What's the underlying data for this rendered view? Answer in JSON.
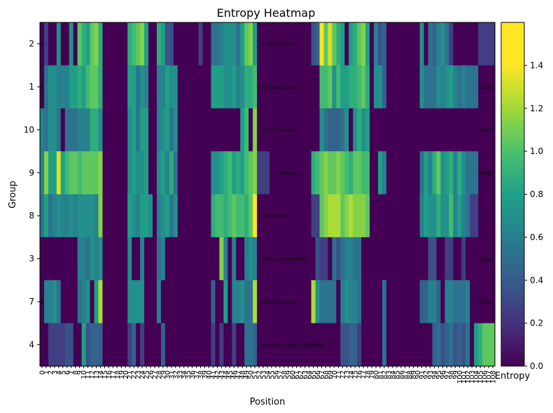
{
  "chart_data": {
    "type": "heatmap",
    "title": "Entropy Heatmap",
    "xlabel": "Position",
    "ylabel": "Group",
    "colorbar_label": "Entropy",
    "colormap": "viridis",
    "vmin": 0.0,
    "vmax": 1.6,
    "colorbar_ticks": [
      "0.0",
      "0.2",
      "0.4",
      "0.6",
      "0.8",
      "1.0",
      "1.2",
      "1.4"
    ],
    "groups": [
      "2",
      "1",
      "10",
      "9",
      "8",
      "3",
      "7",
      "4"
    ],
    "positions": [
      "0",
      "1",
      "2",
      "3",
      "4",
      "5",
      "6",
      "7",
      "8",
      "9",
      "10",
      "11",
      "12",
      "13",
      "14",
      "15",
      "16",
      "17",
      "18",
      "19",
      "20",
      "21",
      "22",
      "23",
      "24",
      "25",
      "26",
      "27",
      "28",
      "29",
      "30",
      "31",
      "32",
      "33",
      "34",
      "35",
      "36",
      "37",
      "38",
      "39",
      "40",
      "41",
      "42",
      "43",
      "44",
      "45",
      "46",
      "47",
      "48",
      "49",
      "50",
      "51",
      "52",
      "53",
      "54",
      "55",
      "56",
      "57",
      "58",
      "59",
      "60",
      "61",
      "62",
      "63",
      "64",
      "65",
      "66",
      "67",
      "68",
      "69",
      "70",
      "71",
      "72",
      "73",
      "74",
      "75",
      "76",
      "77",
      "78",
      "79",
      "80",
      "81",
      "82",
      "83",
      "84",
      "85",
      "86",
      "87",
      "88",
      "89",
      "90",
      "91",
      "92",
      "93",
      "94",
      "95",
      "96",
      "97",
      "98",
      "99",
      "100",
      "101",
      "102",
      "103",
      "104",
      "105",
      "106",
      "107",
      "108"
    ],
    "values": [
      [
        0.0,
        0.3,
        0.0,
        0.0,
        0.8,
        0.0,
        0.0,
        0.8,
        0.0,
        1.2,
        1.0,
        0.9,
        1.2,
        1.3,
        1.0,
        0.0,
        0.0,
        0.0,
        0.0,
        0.0,
        0.0,
        1.0,
        1.1,
        1.2,
        1.3,
        0.9,
        0.0,
        0.0,
        1.0,
        0.9,
        0.4,
        0.4,
        0.0,
        0.0,
        0.0,
        0.0,
        0.0,
        0.0,
        0.3,
        0.0,
        0.0,
        0.6,
        0.6,
        0.7,
        0.8,
        0.8,
        0.8,
        0.6,
        0.9,
        1.2,
        1.3,
        0.9,
        0.0,
        0.0,
        0.0,
        0.0,
        0.0,
        0.0,
        0.0,
        0.0,
        0.0,
        0.0,
        0.0,
        0.0,
        0.0,
        0.4,
        0.5,
        1.6,
        1.2,
        1.5,
        1.2,
        1.0,
        0.9,
        0.0,
        0.9,
        1.0,
        1.2,
        1.3,
        0.9,
        0.0,
        0.7,
        0.4,
        0.5,
        0.0,
        0.0,
        0.0,
        0.0,
        0.0,
        0.0,
        0.0,
        0.0,
        0.8,
        0.0,
        0.6,
        0.5,
        0.7,
        0.8,
        0.6,
        0.3,
        0.0,
        0.0,
        0.0,
        0.0,
        0.0,
        0.0,
        0.3,
        0.3,
        0.3,
        0.3
      ],
      [
        0.0,
        0.6,
        0.8,
        0.8,
        0.7,
        0.7,
        0.7,
        0.9,
        0.9,
        1.0,
        0.9,
        1.1,
        1.2,
        1.2,
        1.0,
        0.0,
        0.0,
        0.0,
        0.0,
        0.0,
        0.0,
        0.9,
        0.9,
        0.6,
        0.8,
        0.7,
        0.0,
        0.0,
        0.7,
        0.7,
        0.9,
        0.8,
        0.8,
        0.0,
        0.0,
        0.0,
        0.0,
        0.0,
        0.0,
        0.0,
        0.0,
        0.9,
        0.9,
        0.9,
        0.8,
        0.8,
        0.9,
        0.7,
        0.8,
        1.0,
        1.0,
        1.1,
        0.0,
        0.0,
        0.0,
        0.0,
        0.0,
        0.0,
        0.0,
        0.0,
        0.0,
        0.0,
        0.0,
        0.0,
        0.0,
        0.0,
        0.0,
        1.1,
        1.1,
        1.2,
        0.8,
        1.1,
        0.9,
        0.9,
        1.0,
        1.0,
        1.1,
        1.2,
        1.0,
        0.0,
        0.8,
        0.8,
        0.5,
        0.0,
        0.0,
        0.0,
        0.0,
        0.0,
        0.0,
        0.0,
        0.0,
        0.8,
        0.6,
        0.6,
        0.6,
        0.8,
        0.7,
        0.8,
        0.9,
        0.7,
        0.6,
        0.7,
        0.6,
        0.6,
        0.6,
        0.0,
        0.0,
        0.0,
        0.0
      ],
      [
        0.7,
        0.6,
        0.8,
        0.8,
        0.6,
        0.0,
        0.6,
        0.6,
        0.6,
        0.7,
        0.7,
        0.7,
        1.0,
        1.0,
        0.8,
        0.0,
        0.0,
        0.0,
        0.0,
        0.0,
        0.0,
        0.8,
        0.9,
        0.6,
        0.9,
        0.9,
        0.0,
        0.0,
        0.7,
        0.8,
        0.9,
        0.6,
        0.8,
        0.0,
        0.0,
        0.0,
        0.0,
        0.0,
        0.0,
        0.0,
        0.0,
        0.0,
        0.0,
        0.0,
        0.0,
        0.0,
        0.0,
        0.0,
        0.9,
        1.1,
        0.0,
        1.3,
        0.0,
        0.0,
        0.0,
        0.0,
        0.0,
        0.0,
        0.0,
        0.0,
        0.0,
        0.0,
        0.0,
        0.0,
        0.0,
        0.0,
        0.0,
        0.8,
        0.6,
        0.5,
        0.5,
        0.5,
        0.6,
        0.8,
        0.0,
        0.8,
        1.0,
        0.8,
        0.9,
        0.0,
        0.0,
        0.0,
        0.0,
        0.0,
        0.0,
        0.0,
        0.0,
        0.0,
        0.0,
        0.0,
        0.0,
        0.0,
        0.0,
        0.0,
        0.0,
        0.0,
        0.0,
        0.0,
        0.0,
        0.0,
        0.0,
        0.0,
        0.0,
        0.0,
        0.0,
        0.0,
        0.0,
        0.0,
        0.0
      ],
      [
        0.7,
        1.3,
        0.9,
        0.9,
        1.5,
        0.9,
        1.1,
        1.2,
        1.2,
        1.1,
        1.2,
        1.2,
        1.2,
        1.2,
        1.3,
        0.0,
        0.0,
        0.0,
        0.0,
        0.0,
        0.0,
        0.8,
        0.9,
        0.8,
        0.8,
        0.9,
        0.0,
        0.0,
        0.8,
        0.9,
        0.7,
        1.0,
        0.6,
        0.0,
        0.0,
        0.0,
        0.0,
        0.0,
        0.0,
        0.0,
        0.0,
        0.8,
        0.8,
        0.9,
        1.0,
        1.1,
        0.9,
        1.0,
        0.9,
        1.1,
        1.2,
        1.3,
        0.3,
        0.3,
        0.3,
        0.0,
        0.0,
        0.0,
        0.0,
        0.0,
        0.0,
        0.0,
        0.0,
        0.0,
        0.0,
        1.0,
        1.1,
        1.2,
        1.3,
        1.2,
        1.2,
        1.3,
        1.2,
        1.1,
        1.0,
        1.2,
        1.2,
        1.1,
        1.1,
        0.0,
        0.0,
        0.9,
        0.7,
        0.0,
        0.0,
        0.0,
        0.0,
        0.0,
        0.0,
        0.0,
        0.0,
        0.6,
        0.9,
        0.7,
        1.0,
        1.2,
        0.8,
        0.9,
        1.0,
        0.7,
        1.0,
        0.8,
        0.6,
        0.6,
        0.6,
        0.0,
        0.0,
        0.0,
        0.0
      ],
      [
        0.6,
        0.9,
        0.6,
        0.7,
        0.8,
        0.7,
        0.7,
        0.8,
        0.7,
        0.8,
        0.8,
        0.8,
        0.8,
        0.7,
        1.3,
        0.0,
        0.0,
        0.0,
        0.0,
        0.0,
        0.0,
        0.9,
        0.8,
        0.7,
        0.9,
        0.9,
        0.8,
        0.0,
        0.7,
        0.8,
        0.9,
        0.6,
        0.8,
        0.0,
        0.0,
        0.0,
        0.0,
        0.0,
        0.0,
        0.0,
        0.0,
        1.0,
        1.1,
        1.1,
        1.0,
        1.1,
        1.2,
        1.1,
        1.1,
        1.0,
        1.2,
        1.6,
        0.0,
        0.0,
        0.0,
        0.0,
        0.0,
        0.0,
        0.0,
        0.0,
        0.0,
        0.0,
        0.0,
        0.0,
        0.0,
        0.3,
        0.3,
        1.2,
        1.3,
        1.4,
        1.4,
        1.4,
        1.2,
        1.3,
        1.4,
        1.3,
        1.3,
        1.3,
        1.2,
        0.0,
        0.0,
        0.0,
        0.0,
        0.0,
        0.0,
        0.0,
        0.0,
        0.0,
        0.0,
        0.0,
        0.0,
        0.7,
        0.9,
        0.8,
        0.8,
        1.0,
        0.8,
        0.8,
        1.1,
        0.7,
        0.9,
        0.7,
        0.6,
        0.3,
        0.3,
        0.0,
        0.0,
        0.0,
        0.0
      ],
      [
        0.0,
        0.0,
        0.0,
        0.0,
        0.0,
        0.0,
        0.0,
        0.0,
        0.0,
        0.7,
        0.7,
        0.6,
        0.8,
        0.7,
        0.8,
        0.0,
        0.0,
        0.0,
        0.0,
        0.0,
        0.0,
        0.8,
        0.0,
        0.0,
        0.7,
        0.0,
        0.0,
        0.0,
        0.6,
        0.7,
        0.0,
        0.0,
        0.0,
        0.0,
        0.0,
        0.0,
        0.0,
        0.0,
        0.0,
        0.0,
        0.0,
        0.0,
        0.0,
        1.3,
        0.7,
        0.0,
        0.7,
        0.0,
        0.0,
        0.7,
        0.8,
        0.7,
        0.0,
        0.0,
        0.0,
        0.0,
        0.0,
        0.0,
        0.0,
        0.0,
        0.0,
        0.0,
        0.0,
        0.0,
        0.0,
        0.0,
        0.4,
        0.3,
        0.3,
        0.0,
        0.6,
        0.4,
        0.6,
        0.7,
        0.7,
        0.6,
        0.6,
        0.0,
        0.0,
        0.0,
        0.0,
        0.0,
        0.0,
        0.0,
        0.0,
        0.0,
        0.0,
        0.0,
        0.0,
        0.0,
        0.0,
        0.0,
        0.0,
        0.4,
        0.4,
        0.0,
        0.0,
        0.3,
        0.3,
        0.0,
        0.0,
        0.3,
        0.0,
        0.0,
        0.0,
        0.0,
        0.0,
        0.0,
        0.0
      ],
      [
        0.0,
        0.7,
        0.7,
        0.8,
        0.6,
        0.0,
        0.0,
        0.0,
        0.0,
        0.6,
        0.7,
        0.8,
        0.0,
        0.9,
        1.4,
        0.0,
        0.0,
        0.0,
        0.0,
        0.0,
        0.0,
        0.8,
        0.8,
        0.8,
        0.8,
        0.0,
        0.0,
        0.0,
        0.7,
        0.0,
        0.0,
        0.0,
        0.0,
        0.0,
        0.0,
        0.0,
        0.0,
        0.0,
        0.0,
        0.0,
        0.0,
        0.5,
        0.0,
        0.0,
        0.9,
        0.0,
        0.7,
        0.7,
        0.8,
        0.6,
        0.6,
        1.4,
        0.0,
        0.0,
        0.0,
        0.0,
        0.0,
        0.0,
        0.0,
        0.0,
        0.0,
        0.0,
        0.0,
        0.0,
        0.0,
        1.4,
        0.8,
        0.6,
        0.6,
        0.6,
        0.6,
        0.0,
        0.7,
        0.8,
        0.7,
        0.7,
        0.6,
        0.0,
        0.0,
        0.0,
        0.0,
        0.0,
        0.6,
        0.0,
        0.0,
        0.0,
        0.0,
        0.0,
        0.0,
        0.0,
        0.0,
        0.5,
        0.5,
        0.7,
        0.7,
        0.5,
        0.0,
        0.7,
        0.7,
        0.6,
        0.6,
        0.6,
        0.7,
        0.0,
        0.0,
        0.0,
        0.0,
        0.0,
        0.0
      ],
      [
        0.0,
        0.0,
        0.3,
        0.3,
        0.3,
        0.3,
        0.4,
        0.4,
        0.0,
        0.0,
        0.9,
        0.4,
        0.5,
        0.5,
        0.5,
        0.0,
        0.0,
        0.0,
        0.0,
        0.0,
        0.0,
        0.3,
        0.5,
        0.0,
        0.3,
        0.0,
        0.0,
        0.0,
        0.0,
        0.5,
        0.0,
        0.0,
        0.0,
        0.0,
        0.0,
        0.0,
        0.0,
        0.0,
        0.0,
        0.0,
        0.0,
        0.3,
        0.0,
        0.3,
        0.0,
        0.0,
        0.3,
        0.0,
        0.0,
        0.6,
        0.6,
        0.5,
        0.0,
        0.0,
        0.0,
        0.0,
        0.0,
        0.0,
        0.0,
        0.0,
        0.0,
        0.0,
        0.0,
        0.0,
        0.0,
        0.0,
        0.0,
        0.0,
        0.0,
        0.0,
        0.0,
        0.0,
        0.4,
        0.4,
        0.5,
        0.5,
        0.3,
        0.0,
        0.0,
        0.0,
        0.0,
        0.0,
        0.6,
        0.0,
        0.0,
        0.0,
        0.0,
        0.0,
        0.0,
        0.0,
        0.0,
        0.0,
        0.0,
        0.0,
        0.5,
        0.6,
        0.4,
        0.5,
        0.6,
        0.4,
        0.5,
        0.4,
        0.6,
        0.0,
        0.9,
        1.0,
        1.2,
        1.2,
        1.2
      ]
    ],
    "overlay": [
      {
        "group": "2",
        "text": "x",
        "from": 0
      },
      {
        "group": "2",
        "text": "xxxxxxxxxx",
        "from": 53
      },
      {
        "group": "1",
        "text": "x",
        "from": 0
      },
      {
        "group": "1",
        "text": "xxxxxxxxxx",
        "from": 53
      },
      {
        "group": "1",
        "text": "xxxx",
        "from": 105
      },
      {
        "group": "10",
        "text": "xxxxxxxxxx",
        "from": 53
      },
      {
        "group": "10",
        "text": "xxxx",
        "from": 105
      },
      {
        "group": "9",
        "text": "xxxxxx",
        "from": 57
      },
      {
        "group": "9",
        "text": "xxxx",
        "from": 105
      },
      {
        "group": "8",
        "text": "xxxxxxxx",
        "from": 53
      },
      {
        "group": "3",
        "text": "xxxxxxxxxxxxx",
        "from": 53
      },
      {
        "group": "3",
        "text": "xxxx",
        "from": 105
      },
      {
        "group": "7",
        "text": "x",
        "from": 0
      },
      {
        "group": "7",
        "text": "xxxxxxxxxx",
        "from": 53
      },
      {
        "group": "7",
        "text": "xxxx",
        "from": 105
      },
      {
        "group": "4",
        "text": "xxxxxxxxxxxxxxxxxx",
        "from": 53
      }
    ]
  }
}
